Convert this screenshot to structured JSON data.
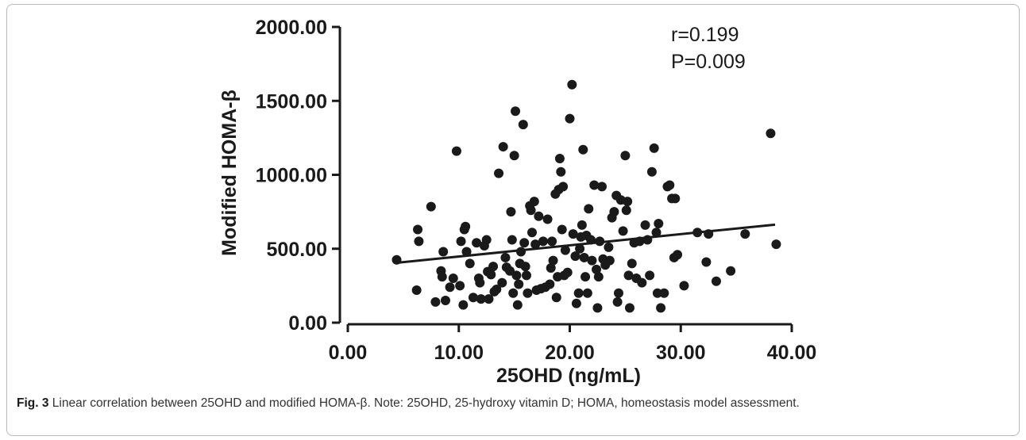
{
  "caption": {
    "label": "Fig. 3",
    "text": "Linear correlation between 25OHD and modified HOMA-β. Note: 25OHD, 25-hydroxy vitamin D; HOMA, homeostasis model assessment."
  },
  "chart_data": {
    "type": "scatter",
    "title": "",
    "xlabel": "25OHD (ng/mL)",
    "ylabel": "Modified HOMA-β",
    "xlim": [
      0,
      40
    ],
    "ylim": [
      0,
      2000
    ],
    "x_ticks": [
      "0.00",
      "10.00",
      "20.00",
      "30.00",
      "40.00"
    ],
    "y_ticks": [
      "0.00",
      "500.00",
      "1000.00",
      "1500.00",
      "2000.00"
    ],
    "grid": false,
    "annotations": [
      "r=0.199",
      "P=0.009"
    ],
    "point_color": "#1a1a1a",
    "regression_line": {
      "x": [
        4.4,
        38.5
      ],
      "y": [
        405,
        663
      ]
    },
    "points": [
      [
        4.4,
        425
      ],
      [
        6.2,
        220
      ],
      [
        6.3,
        630
      ],
      [
        6.4,
        550
      ],
      [
        7.5,
        785
      ],
      [
        7.9,
        140
      ],
      [
        8.4,
        350
      ],
      [
        8.5,
        310
      ],
      [
        8.6,
        480
      ],
      [
        8.8,
        150
      ],
      [
        9.2,
        240
      ],
      [
        9.5,
        300
      ],
      [
        9.8,
        1160
      ],
      [
        10.1,
        250
      ],
      [
        10.2,
        550
      ],
      [
        10.4,
        120
      ],
      [
        10.5,
        630
      ],
      [
        10.6,
        650
      ],
      [
        10.7,
        480
      ],
      [
        11.0,
        400
      ],
      [
        11.3,
        170
      ],
      [
        11.6,
        540
      ],
      [
        11.8,
        300
      ],
      [
        11.9,
        270
      ],
      [
        12.0,
        160
      ],
      [
        12.3,
        520
      ],
      [
        12.5,
        560
      ],
      [
        12.6,
        345
      ],
      [
        12.7,
        160
      ],
      [
        12.9,
        325
      ],
      [
        13.1,
        380
      ],
      [
        13.2,
        210
      ],
      [
        13.4,
        225
      ],
      [
        13.6,
        1010
      ],
      [
        13.9,
        270
      ],
      [
        14.0,
        1190
      ],
      [
        14.2,
        440
      ],
      [
        14.3,
        375
      ],
      [
        14.6,
        350
      ],
      [
        14.7,
        750
      ],
      [
        14.8,
        560
      ],
      [
        14.9,
        200
      ],
      [
        15.0,
        1130
      ],
      [
        15.1,
        1430
      ],
      [
        15.2,
        320
      ],
      [
        15.3,
        120
      ],
      [
        15.4,
        260
      ],
      [
        15.5,
        400
      ],
      [
        15.6,
        480
      ],
      [
        15.8,
        1340
      ],
      [
        15.9,
        540
      ],
      [
        16.0,
        380
      ],
      [
        16.1,
        320
      ],
      [
        16.2,
        200
      ],
      [
        16.4,
        790
      ],
      [
        16.5,
        760
      ],
      [
        16.6,
        610
      ],
      [
        16.8,
        820
      ],
      [
        16.9,
        530
      ],
      [
        17.0,
        220
      ],
      [
        17.2,
        720
      ],
      [
        17.4,
        230
      ],
      [
        17.6,
        550
      ],
      [
        17.8,
        240
      ],
      [
        18.0,
        700
      ],
      [
        18.2,
        260
      ],
      [
        18.3,
        370
      ],
      [
        18.4,
        550
      ],
      [
        18.5,
        420
      ],
      [
        18.7,
        870
      ],
      [
        18.8,
        170
      ],
      [
        18.9,
        310
      ],
      [
        19.0,
        900
      ],
      [
        19.1,
        1110
      ],
      [
        19.2,
        1020
      ],
      [
        19.3,
        630
      ],
      [
        19.4,
        920
      ],
      [
        19.5,
        320
      ],
      [
        19.6,
        490
      ],
      [
        19.8,
        340
      ],
      [
        20.0,
        1380
      ],
      [
        20.2,
        1610
      ],
      [
        20.3,
        600
      ],
      [
        20.5,
        450
      ],
      [
        20.6,
        130
      ],
      [
        20.8,
        200
      ],
      [
        20.9,
        500
      ],
      [
        21.0,
        580
      ],
      [
        21.1,
        660
      ],
      [
        21.2,
        1170
      ],
      [
        21.3,
        440
      ],
      [
        21.4,
        310
      ],
      [
        21.5,
        590
      ],
      [
        21.6,
        200
      ],
      [
        21.7,
        770
      ],
      [
        21.9,
        560
      ],
      [
        22.0,
        420
      ],
      [
        22.2,
        930
      ],
      [
        22.4,
        360
      ],
      [
        22.5,
        100
      ],
      [
        22.6,
        310
      ],
      [
        22.7,
        550
      ],
      [
        22.9,
        920
      ],
      [
        23.0,
        430
      ],
      [
        23.2,
        390
      ],
      [
        23.5,
        510
      ],
      [
        23.6,
        420
      ],
      [
        23.8,
        710
      ],
      [
        24.0,
        750
      ],
      [
        24.2,
        860
      ],
      [
        24.3,
        140
      ],
      [
        24.4,
        200
      ],
      [
        24.6,
        830
      ],
      [
        24.8,
        620
      ],
      [
        25.0,
        1130
      ],
      [
        25.1,
        760
      ],
      [
        25.2,
        820
      ],
      [
        25.3,
        320
      ],
      [
        25.4,
        100
      ],
      [
        25.6,
        400
      ],
      [
        25.8,
        540
      ],
      [
        26.0,
        300
      ],
      [
        26.3,
        550
      ],
      [
        26.5,
        270
      ],
      [
        26.8,
        660
      ],
      [
        27.0,
        560
      ],
      [
        27.2,
        320
      ],
      [
        27.4,
        1020
      ],
      [
        27.6,
        1180
      ],
      [
        27.8,
        610
      ],
      [
        27.9,
        200
      ],
      [
        28.0,
        670
      ],
      [
        28.2,
        100
      ],
      [
        28.5,
        200
      ],
      [
        28.8,
        920
      ],
      [
        29.0,
        930
      ],
      [
        29.2,
        840
      ],
      [
        29.4,
        440
      ],
      [
        29.5,
        840
      ],
      [
        29.7,
        460
      ],
      [
        30.3,
        250
      ],
      [
        31.5,
        610
      ],
      [
        32.3,
        410
      ],
      [
        32.5,
        600
      ],
      [
        33.2,
        280
      ],
      [
        34.5,
        350
      ],
      [
        35.8,
        600
      ],
      [
        38.1,
        1280
      ],
      [
        38.6,
        530
      ]
    ]
  }
}
